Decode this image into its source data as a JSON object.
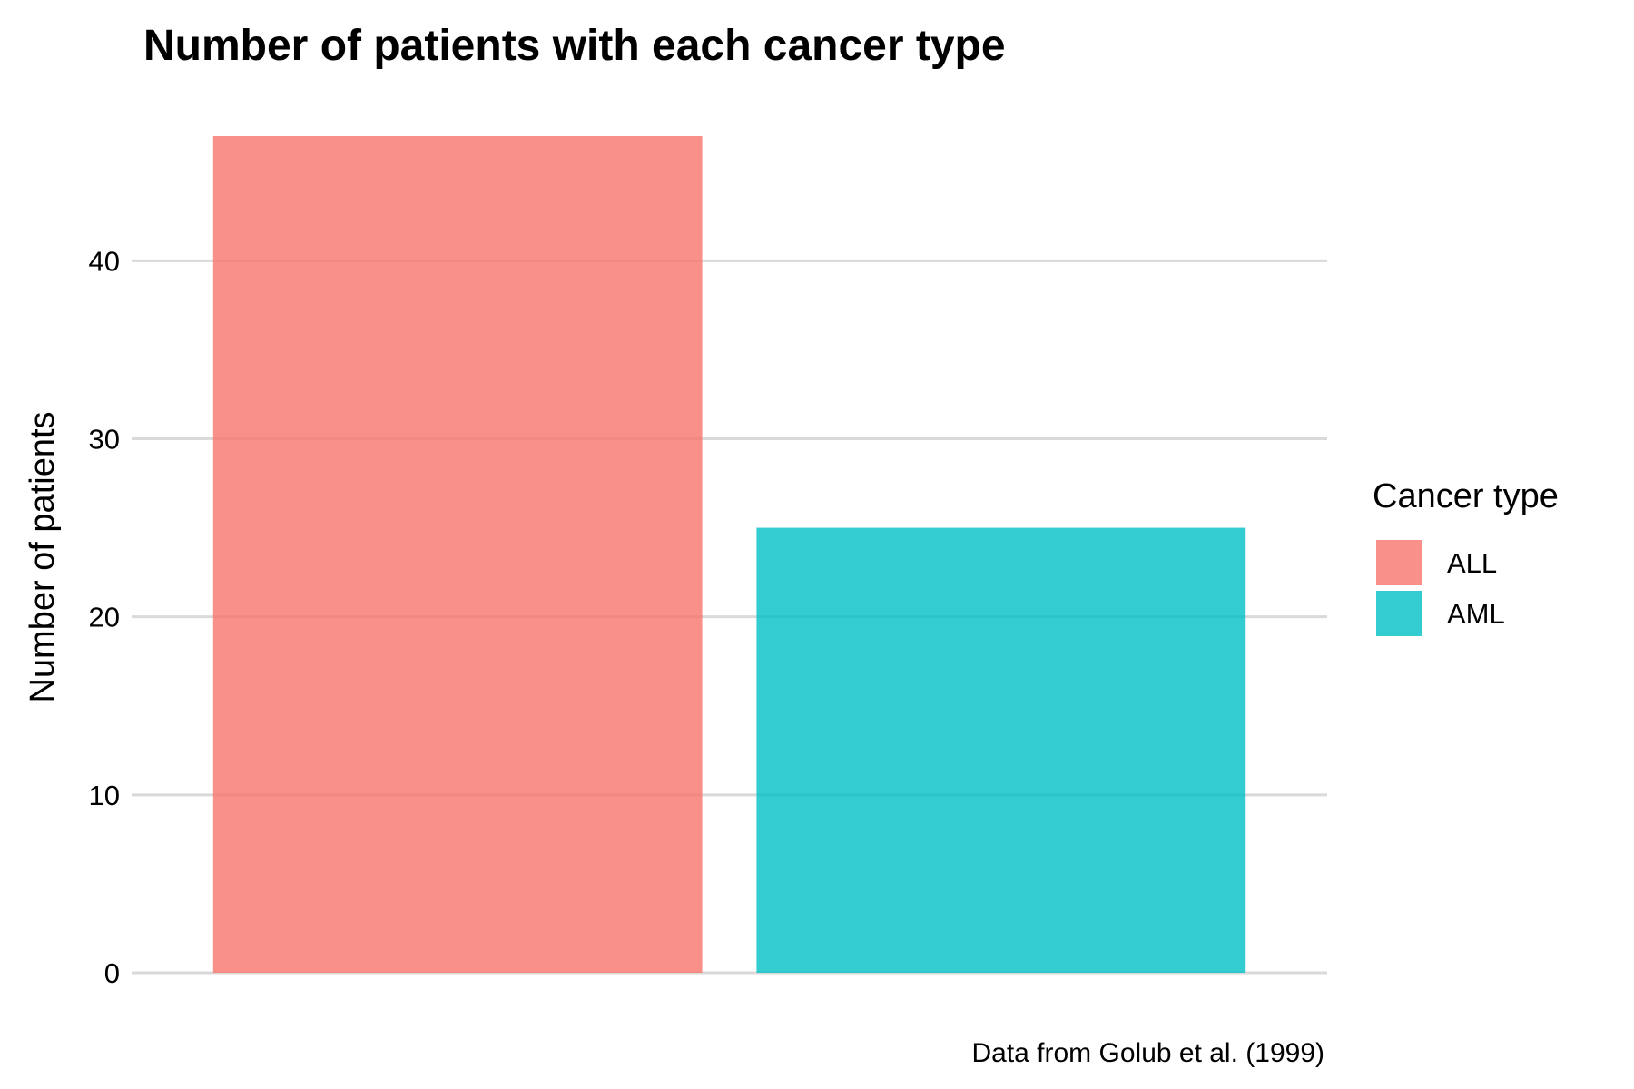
{
  "chart_data": {
    "type": "bar",
    "title": "Number of patients with each cancer type",
    "ylabel": "Number of patients",
    "xlabel": "",
    "caption": "Data from Golub et al. (1999)",
    "categories": [
      "ALL",
      "AML"
    ],
    "values": [
      47,
      25
    ],
    "colors": [
      "#F8766D",
      "#00BFC4"
    ],
    "bar_opacity": 0.8,
    "ylim": [
      0,
      47
    ],
    "yticks": [
      0,
      10,
      20,
      30,
      40
    ],
    "grid": true,
    "legend": {
      "title": "Cancer type",
      "placement": "right",
      "entries": [
        "ALL",
        "AML"
      ]
    }
  }
}
